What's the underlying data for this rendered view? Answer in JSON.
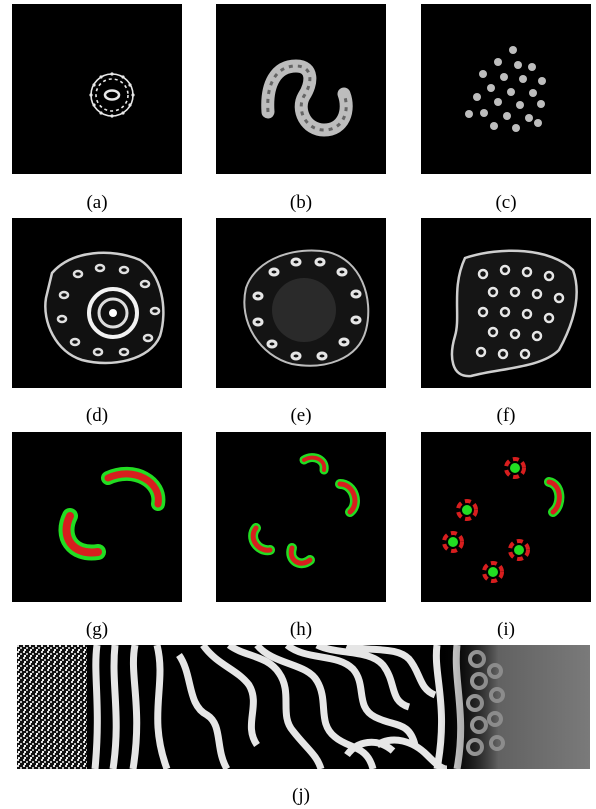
{
  "figure": {
    "panels": [
      {
        "id": "a",
        "label": "(a)"
      },
      {
        "id": "b",
        "label": "(b)"
      },
      {
        "id": "c",
        "label": "(c)"
      },
      {
        "id": "d",
        "label": "(d)"
      },
      {
        "id": "e",
        "label": "(e)"
      },
      {
        "id": "f",
        "label": "(f)"
      },
      {
        "id": "g",
        "label": "(g)"
      },
      {
        "id": "h",
        "label": "(h)"
      },
      {
        "id": "i",
        "label": "(i)"
      },
      {
        "id": "j",
        "label": "(j)"
      }
    ],
    "colors": {
      "background": "#000000",
      "pattern": "#e8e8e8",
      "overlay_red": "#d81e1e",
      "overlay_green": "#22dd22",
      "field_gray": "#7a7a7a"
    }
  }
}
